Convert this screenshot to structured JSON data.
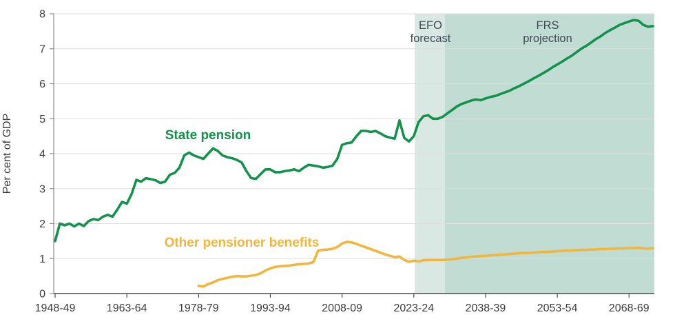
{
  "chart_data": {
    "type": "line",
    "title": "",
    "xlabel": "",
    "ylabel": "Per cent of GDP",
    "ylim": [
      0,
      8
    ],
    "y_ticks": [
      0,
      1,
      2,
      3,
      4,
      5,
      6,
      7,
      8
    ],
    "x_tick_labels": [
      "1948-49",
      "1963-64",
      "1978-79",
      "1993-94",
      "2008-09",
      "2023-24",
      "2038-39",
      "2053-54",
      "2068-69"
    ],
    "x_tick_years": [
      1948,
      1963,
      1978,
      1993,
      2008,
      2023,
      2038,
      2053,
      2068
    ],
    "x_range_years": [
      1948,
      2073
    ],
    "grid": "horizontal",
    "legend_position": "inline-labels",
    "regions": [
      {
        "label_line1": "EFO",
        "label_line2": "forecast",
        "from_year": 2023.2,
        "to_year": 2029.5,
        "color": "#d9e8e2"
      },
      {
        "label_line1": "FRS",
        "label_line2": "projection",
        "from_year": 2029.5,
        "to_year": 2073.6,
        "color": "#c1dcd3"
      }
    ],
    "series": [
      {
        "name": "State pension",
        "color": "#12924b",
        "start_year": 1948,
        "values": [
          1.5,
          2.0,
          1.95,
          2.0,
          1.92,
          2.0,
          1.93,
          2.07,
          2.13,
          2.1,
          2.2,
          2.25,
          2.2,
          2.4,
          2.62,
          2.57,
          2.85,
          3.25,
          3.2,
          3.3,
          3.27,
          3.24,
          3.16,
          3.2,
          3.4,
          3.45,
          3.6,
          3.95,
          4.03,
          3.95,
          3.9,
          3.85,
          4.0,
          4.15,
          4.08,
          3.95,
          3.9,
          3.87,
          3.82,
          3.75,
          3.5,
          3.3,
          3.28,
          3.42,
          3.55,
          3.55,
          3.47,
          3.47,
          3.5,
          3.52,
          3.55,
          3.5,
          3.6,
          3.68,
          3.66,
          3.64,
          3.6,
          3.62,
          3.66,
          3.85,
          4.25,
          4.3,
          4.32,
          4.5,
          4.65,
          4.65,
          4.62,
          4.65,
          4.58,
          4.5,
          4.46,
          4.43,
          4.95,
          4.45,
          4.35,
          4.5,
          4.9,
          5.07,
          5.1,
          5.0,
          5.0,
          5.05,
          5.15,
          5.25,
          5.35,
          5.42,
          5.47,
          5.52,
          5.55,
          5.53,
          5.58,
          5.62,
          5.65,
          5.7,
          5.75,
          5.8,
          5.87,
          5.93,
          6.0,
          6.07,
          6.15,
          6.22,
          6.3,
          6.38,
          6.47,
          6.55,
          6.63,
          6.72,
          6.8,
          6.9,
          7.0,
          7.08,
          7.17,
          7.27,
          7.35,
          7.45,
          7.53,
          7.6,
          7.68,
          7.73,
          7.78,
          7.82,
          7.8,
          7.68,
          7.63,
          7.65
        ]
      },
      {
        "name": "Other pensioner benefits",
        "color": "#f2b53d",
        "start_year": 1978,
        "values": [
          0.22,
          0.2,
          0.27,
          0.32,
          0.38,
          0.42,
          0.45,
          0.48,
          0.5,
          0.49,
          0.49,
          0.51,
          0.53,
          0.58,
          0.66,
          0.72,
          0.76,
          0.78,
          0.79,
          0.8,
          0.82,
          0.84,
          0.85,
          0.86,
          0.9,
          1.23,
          1.25,
          1.26,
          1.28,
          1.33,
          1.43,
          1.48,
          1.46,
          1.42,
          1.37,
          1.32,
          1.27,
          1.22,
          1.17,
          1.12,
          1.08,
          1.04,
          1.06,
          0.96,
          0.91,
          0.94,
          0.92,
          0.95,
          0.96,
          0.96,
          0.96,
          0.96,
          0.97,
          0.98,
          1.0,
          1.02,
          1.03,
          1.05,
          1.06,
          1.07,
          1.08,
          1.09,
          1.1,
          1.11,
          1.12,
          1.13,
          1.14,
          1.15,
          1.16,
          1.16,
          1.17,
          1.18,
          1.19,
          1.19,
          1.2,
          1.21,
          1.22,
          1.23,
          1.23,
          1.24,
          1.25,
          1.25,
          1.26,
          1.26,
          1.27,
          1.27,
          1.28,
          1.28,
          1.29,
          1.29,
          1.3,
          1.3,
          1.31,
          1.29,
          1.28,
          1.3
        ]
      }
    ]
  }
}
